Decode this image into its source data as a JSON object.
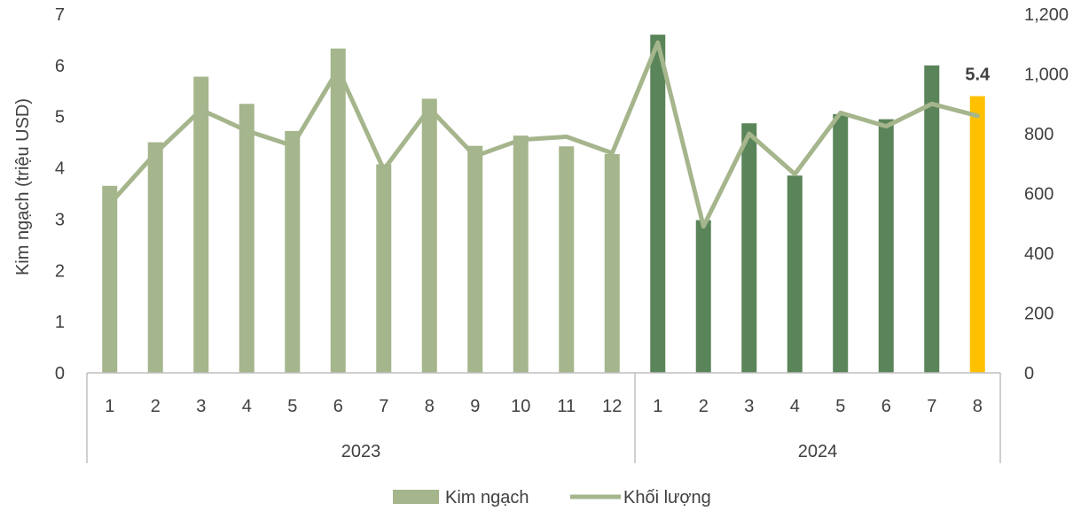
{
  "chart_data": {
    "type": "bar",
    "ylabel": "Kim ngạch (triệu USD)",
    "ylim": [
      0,
      7
    ],
    "y_ticks": [
      "0",
      "1",
      "2",
      "3",
      "4",
      "5",
      "6",
      "7"
    ],
    "y2lim": [
      0,
      1200
    ],
    "y2_ticks": [
      "0",
      "200",
      "400",
      "600",
      "800",
      "1,000",
      "1,200"
    ],
    "groups": [
      {
        "label": "2023",
        "categories": [
          "1",
          "2",
          "3",
          "4",
          "5",
          "6",
          "7",
          "8",
          "9",
          "10",
          "11",
          "12"
        ]
      },
      {
        "label": "2024",
        "categories": [
          "1",
          "2",
          "3",
          "4",
          "5",
          "6",
          "7",
          "8"
        ]
      }
    ],
    "series": [
      {
        "name": "Kim ngạch",
        "type": "bar",
        "axis": "left",
        "values": [
          3.65,
          4.5,
          5.78,
          5.25,
          4.72,
          6.33,
          4.07,
          5.35,
          4.43,
          4.63,
          4.42,
          4.27,
          6.6,
          2.98,
          4.87,
          3.85,
          5.05,
          4.95,
          6.0,
          5.4
        ]
      },
      {
        "name": "Khối lượng",
        "type": "line",
        "axis": "right",
        "values": [
          565,
          735,
          880,
          810,
          760,
          1015,
          680,
          885,
          725,
          780,
          790,
          735,
          1105,
          490,
          800,
          665,
          870,
          825,
          900,
          860
        ]
      }
    ],
    "data_labels": [
      {
        "index": 19,
        "text": "5.4"
      }
    ],
    "colors": {
      "bar_2023": "#a5b58c",
      "bar_2024": "#5a8459",
      "bar_highlight": "#ffc000",
      "line": "#a5b58c",
      "axis": "#bfbfbf"
    },
    "legend": {
      "position": "bottom",
      "items": [
        "Kim ngạch",
        "Khối lượng"
      ]
    }
  }
}
